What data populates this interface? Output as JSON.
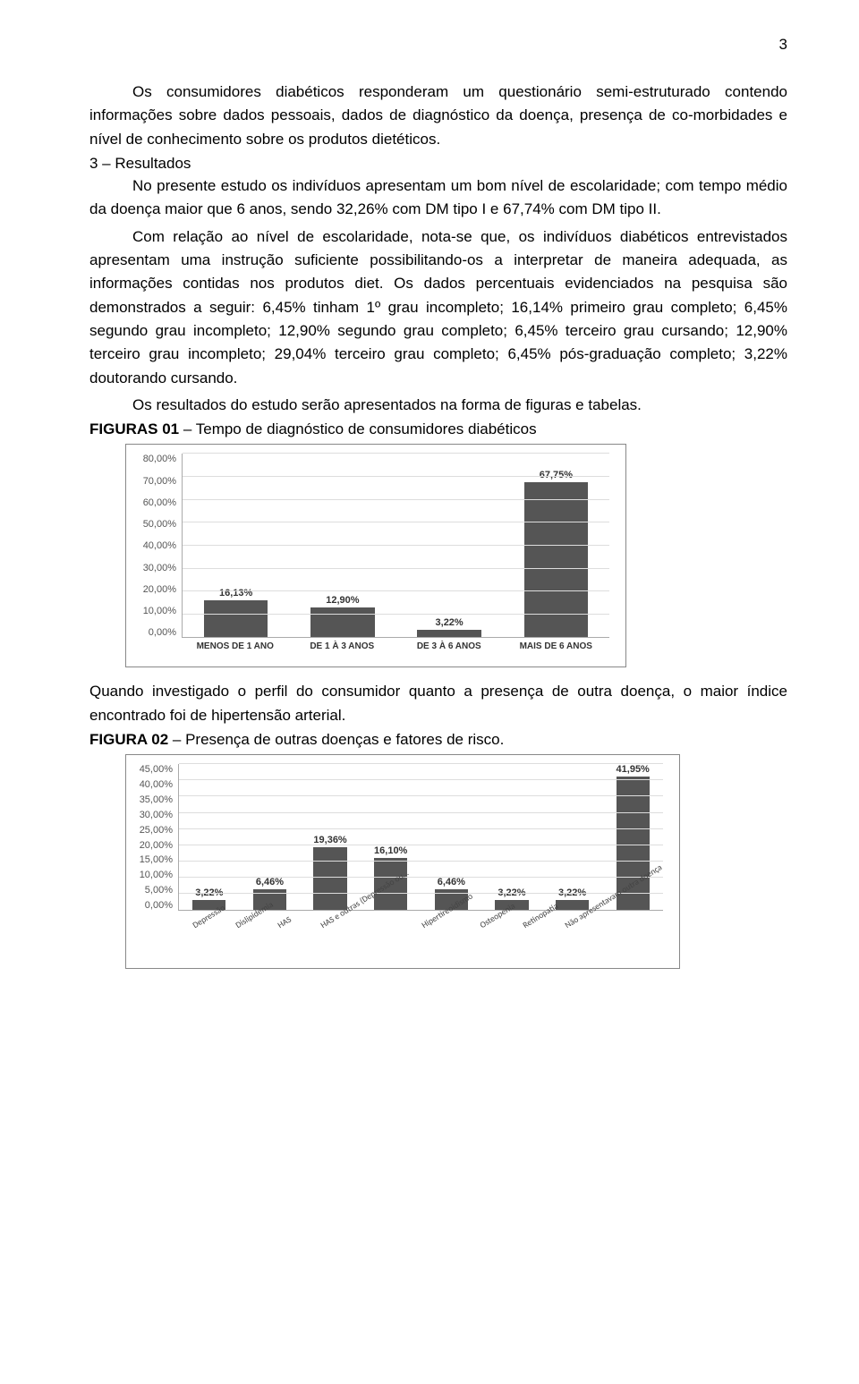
{
  "page_number": "3",
  "paragraphs": {
    "p1": "Os consumidores diabéticos responderam um questionário semi-estruturado contendo informações sobre dados pessoais, dados de diagnóstico da doença, presença de co-morbidades e nível de conhecimento sobre os produtos dietéticos.",
    "heading": "3 – Resultados",
    "p2": "No presente estudo os indivíduos apresentam um bom nível de escolaridade; com tempo médio da doença maior que 6 anos, sendo 32,26% com DM tipo I e 67,74% com DM tipo II.",
    "p3": "Com relação ao nível de escolaridade, nota-se que, os indivíduos diabéticos entrevistados apresentam uma instrução suficiente possibilitando-os a interpretar de maneira adequada, as informações contidas nos produtos diet. Os dados percentuais evidenciados na pesquisa são demonstrados a seguir: 6,45% tinham 1º grau incompleto; 16,14% primeiro grau completo; 6,45% segundo grau incompleto; 12,90% segundo grau completo; 6,45% terceiro grau cursando; 12,90% terceiro grau incompleto; 29,04% terceiro grau completo; 6,45% pós-graduação completo; 3,22% doutorando cursando.",
    "p4": "Os resultados do estudo serão apresentados na forma de figuras e tabelas.",
    "fig1_label_b": "FIGURAS 01",
    "fig1_label": " – Tempo de diagnóstico de consumidores diabéticos",
    "p5": "Quando investigado o perfil do consumidor quanto a presença de outra doença, o maior índice encontrado foi de hipertensão arterial.",
    "fig2_label_b": "FIGURA 02",
    "fig2_label": " – Presença de outras doenças e fatores de risco."
  },
  "chart1": {
    "type": "bar",
    "ymax": 80,
    "ystep": 10,
    "bar_color": "#555555",
    "grid_color": "#dddddd",
    "yticks": [
      "0,00%",
      "10,00%",
      "20,00%",
      "30,00%",
      "40,00%",
      "50,00%",
      "60,00%",
      "70,00%",
      "80,00%"
    ],
    "categories": [
      "MENOS DE 1 ANO",
      "DE 1 À 3 ANOS",
      "DE 3 À 6 ANOS",
      "MAIS DE 6 ANOS"
    ],
    "values": [
      16.13,
      12.9,
      3.22,
      67.75
    ],
    "value_labels": [
      "16,13%",
      "12,90%",
      "3,22%",
      "67,75%"
    ]
  },
  "chart2": {
    "type": "bar",
    "ymax": 45,
    "ystep": 5,
    "bar_color": "#555555",
    "grid_color": "#dddddd",
    "yticks": [
      "0,00%",
      "5,00%",
      "10,00%",
      "15,00%",
      "20,00%",
      "25,00%",
      "30,00%",
      "35,00%",
      "40,00%",
      "45,00%"
    ],
    "categories": [
      "Depressão",
      "Dislipidemia",
      "HAS",
      "HAS e outras (Depressão ou…",
      "Hipertireoidismo",
      "Osteopenia",
      "Retinopatia",
      "Não apresentavam outra doença"
    ],
    "values": [
      3.22,
      6.46,
      19.36,
      16.1,
      6.46,
      3.22,
      3.22,
      41.95
    ],
    "value_labels": [
      "3,22%",
      "6,46%",
      "19,36%",
      "16,10%",
      "6,46%",
      "3,22%",
      "3,22%",
      "41,95%"
    ]
  }
}
